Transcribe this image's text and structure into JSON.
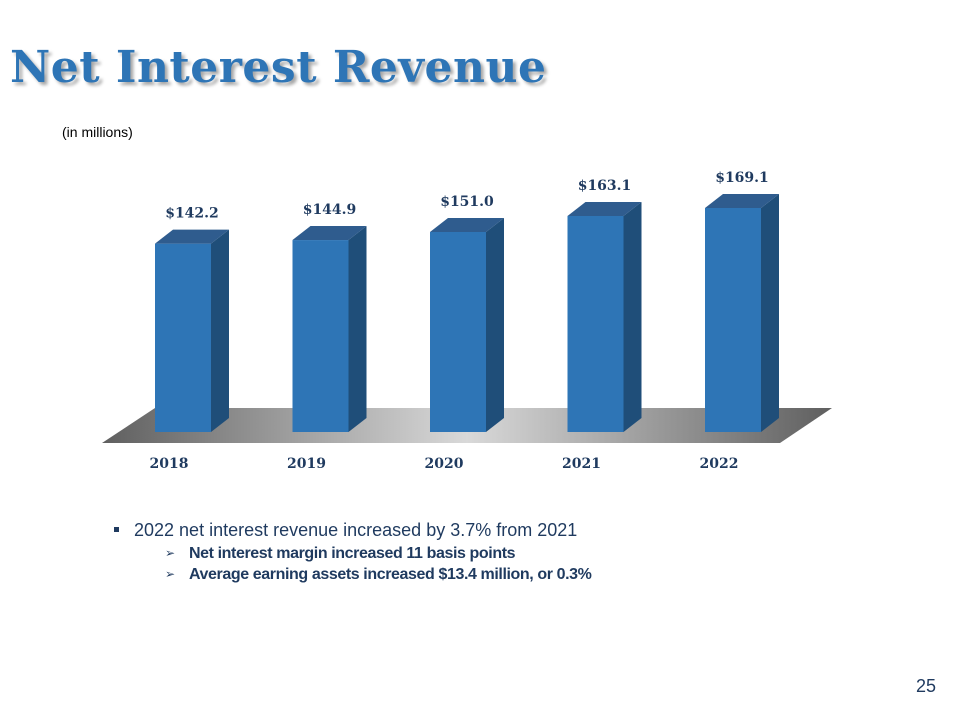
{
  "slide": {
    "title": "Net Interest Revenue",
    "unit_note": "(in millions)",
    "page_number": "25"
  },
  "colors": {
    "bar_front": "#2e75b6",
    "bar_side": "#1f4e79",
    "bar_top": "#2f5c8e",
    "floor_light": "#d9d9d9",
    "floor_dark": "#6b6b6b",
    "title": "#2e75b6",
    "text": "#1f3a5f"
  },
  "chart_data": {
    "type": "bar",
    "style": "3d-column",
    "categories": [
      "2018",
      "2019",
      "2020",
      "2021",
      "2022"
    ],
    "values": [
      142.2,
      144.9,
      151.0,
      163.1,
      169.1
    ],
    "data_labels": [
      "$142.2",
      "$144.9",
      "$151.0",
      "$163.1",
      "$169.1"
    ],
    "ylabel": "(in millions)",
    "gridlines": false,
    "legend": "none"
  },
  "bullets": {
    "main": "2022 net interest revenue increased by 3.7% from 2021",
    "sub_marker": "➢",
    "sub": [
      "Net interest margin increased 11 basis points",
      "Average earning assets increased $13.4 million, or 0.3%"
    ]
  }
}
